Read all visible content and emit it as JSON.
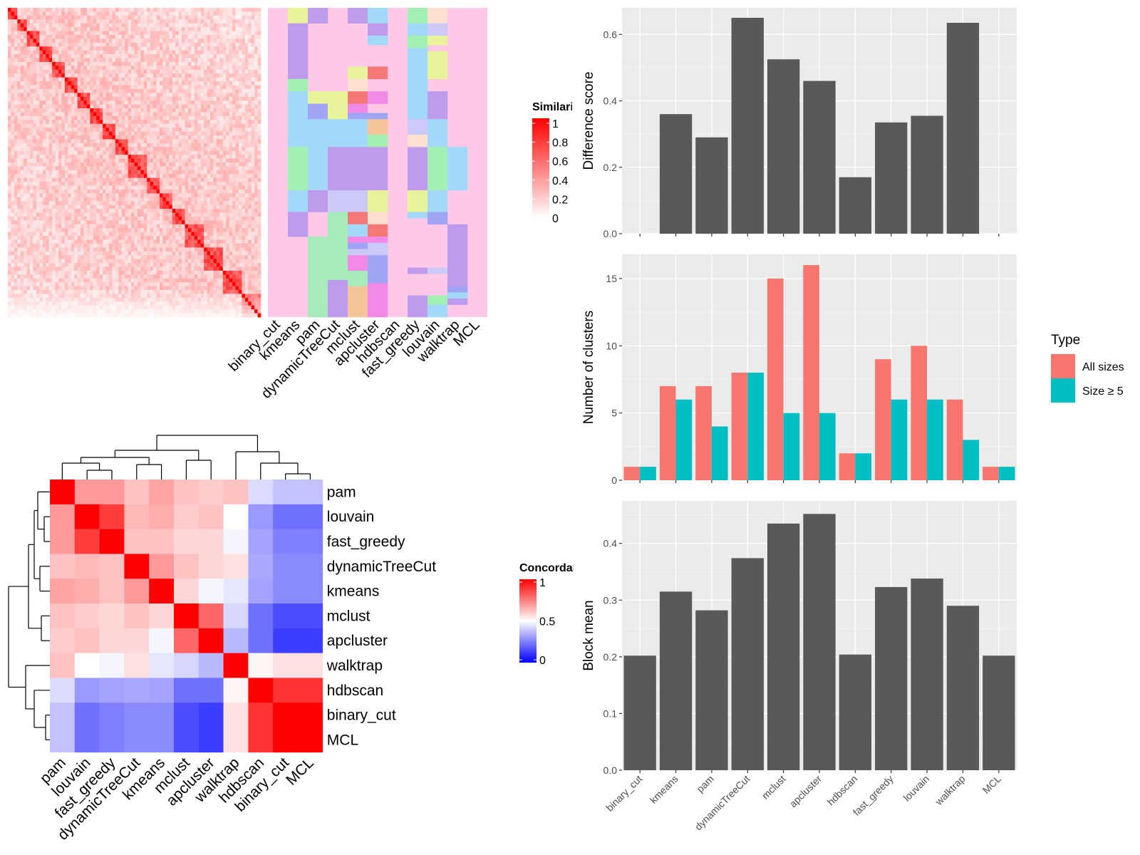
{
  "methods_order": [
    "binary_cut",
    "kmeans",
    "pam",
    "dynamicTreeCut",
    "mclust",
    "apcluster",
    "hdbscan",
    "fast_greedy",
    "louvain",
    "walktrap",
    "MCL"
  ],
  "similarity_legend": {
    "title": "Similarity",
    "ticks": [
      "1",
      "0.8",
      "0.6",
      "0.4",
      "0.2",
      "0"
    ],
    "colors": [
      "#ffffff",
      "#ff0000"
    ]
  },
  "concordance_heatmap": {
    "labels": [
      "pam",
      "louvain",
      "fast_greedy",
      "dynamicTreeCut",
      "kmeans",
      "mclust",
      "apcluster",
      "walktrap",
      "hdbscan",
      "binary_cut",
      "MCL"
    ],
    "legend": {
      "title": "Concordance",
      "ticks": [
        "1",
        "0.5",
        "0"
      ]
    },
    "colors": {
      "low": "#0000ff",
      "mid": "#ffffff",
      "high": "#ff0000"
    }
  },
  "type_legend": {
    "title": "Type",
    "items": [
      {
        "label": "All sizes",
        "color": "#F8766D"
      },
      {
        "label": "Size ≥ 5",
        "color": "#00BFC4"
      }
    ]
  },
  "chart_data": [
    {
      "type": "heatmap",
      "title": "",
      "note": "sorted term-term similarity matrix",
      "legend_title": "Similarity",
      "range": [
        0,
        1
      ]
    },
    {
      "type": "heatmap",
      "title": "",
      "note": "cluster assignment per method",
      "columns": [
        "binary_cut",
        "kmeans",
        "pam",
        "dynamicTreeCut",
        "mclust",
        "apcluster",
        "hdbscan",
        "fast_greedy",
        "louvain",
        "walktrap",
        "MCL"
      ]
    },
    {
      "type": "heatmap",
      "title": "",
      "legend_title": "Concordance",
      "rows": [
        "pam",
        "louvain",
        "fast_greedy",
        "dynamicTreeCut",
        "kmeans",
        "mclust",
        "apcluster",
        "walktrap",
        "hdbscan",
        "binary_cut",
        "MCL"
      ],
      "columns": [
        "pam",
        "louvain",
        "fast_greedy",
        "dynamicTreeCut",
        "kmeans",
        "mclust",
        "apcluster",
        "walktrap",
        "hdbscan",
        "binary_cut",
        "MCL"
      ],
      "values": [
        [
          1.0,
          0.7,
          0.7,
          0.62,
          0.68,
          0.62,
          0.6,
          0.62,
          0.43,
          0.38,
          0.38
        ],
        [
          0.7,
          1.0,
          0.88,
          0.64,
          0.66,
          0.6,
          0.62,
          0.5,
          0.3,
          0.22,
          0.22
        ],
        [
          0.7,
          0.88,
          1.0,
          0.62,
          0.62,
          0.58,
          0.58,
          0.48,
          0.32,
          0.25,
          0.25
        ],
        [
          0.62,
          0.64,
          0.62,
          1.0,
          0.7,
          0.62,
          0.58,
          0.56,
          0.33,
          0.27,
          0.27
        ],
        [
          0.68,
          0.66,
          0.62,
          0.7,
          1.0,
          0.58,
          0.48,
          0.45,
          0.32,
          0.27,
          0.27
        ],
        [
          0.62,
          0.6,
          0.58,
          0.62,
          0.58,
          1.0,
          0.8,
          0.42,
          0.22,
          0.15,
          0.15
        ],
        [
          0.6,
          0.62,
          0.58,
          0.58,
          0.48,
          0.8,
          1.0,
          0.36,
          0.22,
          0.12,
          0.12
        ],
        [
          0.62,
          0.5,
          0.48,
          0.56,
          0.45,
          0.42,
          0.36,
          1.0,
          0.52,
          0.56,
          0.56
        ],
        [
          0.43,
          0.3,
          0.32,
          0.33,
          0.32,
          0.22,
          0.22,
          0.52,
          1.0,
          0.9,
          0.9
        ],
        [
          0.38,
          0.22,
          0.25,
          0.27,
          0.27,
          0.15,
          0.12,
          0.56,
          0.9,
          1.0,
          1.0
        ],
        [
          0.38,
          0.22,
          0.25,
          0.27,
          0.27,
          0.15,
          0.12,
          0.56,
          0.9,
          1.0,
          1.0
        ]
      ],
      "range": [
        0,
        1
      ]
    },
    {
      "type": "bar",
      "title": "",
      "categories": [
        "binary_cut",
        "kmeans",
        "pam",
        "dynamicTreeCut",
        "mclust",
        "apcluster",
        "hdbscan",
        "fast_greedy",
        "louvain",
        "walktrap",
        "MCL"
      ],
      "values": [
        0,
        0.36,
        0.29,
        0.65,
        0.525,
        0.46,
        0.17,
        0.335,
        0.355,
        0.635,
        0
      ],
      "xlabel": "",
      "ylabel": "Difference score",
      "ylim": [
        0,
        0.68
      ],
      "yticks": [
        "0.0",
        "0.2",
        "0.4",
        "0.6"
      ],
      "grid": true
    },
    {
      "type": "bar",
      "title": "",
      "categories": [
        "binary_cut",
        "kmeans",
        "pam",
        "dynamicTreeCut",
        "mclust",
        "apcluster",
        "hdbscan",
        "fast_greedy",
        "louvain",
        "walktrap",
        "MCL"
      ],
      "series": [
        {
          "name": "All sizes",
          "values": [
            1,
            7,
            7,
            8,
            15,
            16,
            2,
            9,
            10,
            6,
            1
          ]
        },
        {
          "name": "Size ≥ 5",
          "values": [
            1,
            6,
            4,
            8,
            5,
            5,
            2,
            6,
            6,
            3,
            1
          ]
        }
      ],
      "xlabel": "",
      "ylabel": "Number of clusters",
      "ylim": [
        0,
        16.8
      ],
      "yticks": [
        "0",
        "5",
        "10",
        "15"
      ],
      "legend": "right",
      "grid": true
    },
    {
      "type": "bar",
      "title": "",
      "categories": [
        "binary_cut",
        "kmeans",
        "pam",
        "dynamicTreeCut",
        "mclust",
        "apcluster",
        "hdbscan",
        "fast_greedy",
        "louvain",
        "walktrap",
        "MCL"
      ],
      "values": [
        0.202,
        0.315,
        0.282,
        0.374,
        0.435,
        0.452,
        0.204,
        0.323,
        0.338,
        0.29,
        0.202
      ],
      "xlabel": "",
      "ylabel": "Block mean",
      "ylim": [
        0,
        0.475
      ],
      "yticks": [
        "0.0",
        "0.1",
        "0.2",
        "0.3",
        "0.4"
      ],
      "grid": true
    }
  ]
}
